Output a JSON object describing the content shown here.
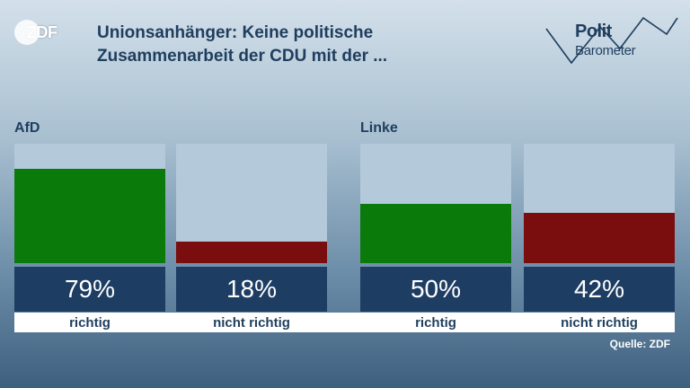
{
  "brand": {
    "logo_text": "ZDF",
    "program_line1": "Polit",
    "program_line2": "Barometer"
  },
  "title_lines": [
    "Unionsanhänger: Keine politische",
    "Zusammenarbeit der CDU mit der ..."
  ],
  "source": "Quelle: ZDF",
  "colors": {
    "positive": "#0a7a0a",
    "negative": "#7a0d0d",
    "bar_bg": "#b4c9da",
    "value_box": "#1e3d63",
    "title": "#1f3e5e"
  },
  "chart_data": [
    {
      "type": "bar",
      "title": "AfD",
      "categories": [
        "richtig",
        "nicht richtig"
      ],
      "values": [
        79,
        18
      ],
      "value_labels": [
        "79%",
        "18%"
      ],
      "ylim": [
        0,
        100
      ]
    },
    {
      "type": "bar",
      "title": "Linke",
      "categories": [
        "richtig",
        "nicht richtig"
      ],
      "values": [
        50,
        42
      ],
      "value_labels": [
        "50%",
        "42%"
      ],
      "ylim": [
        0,
        100
      ]
    }
  ]
}
